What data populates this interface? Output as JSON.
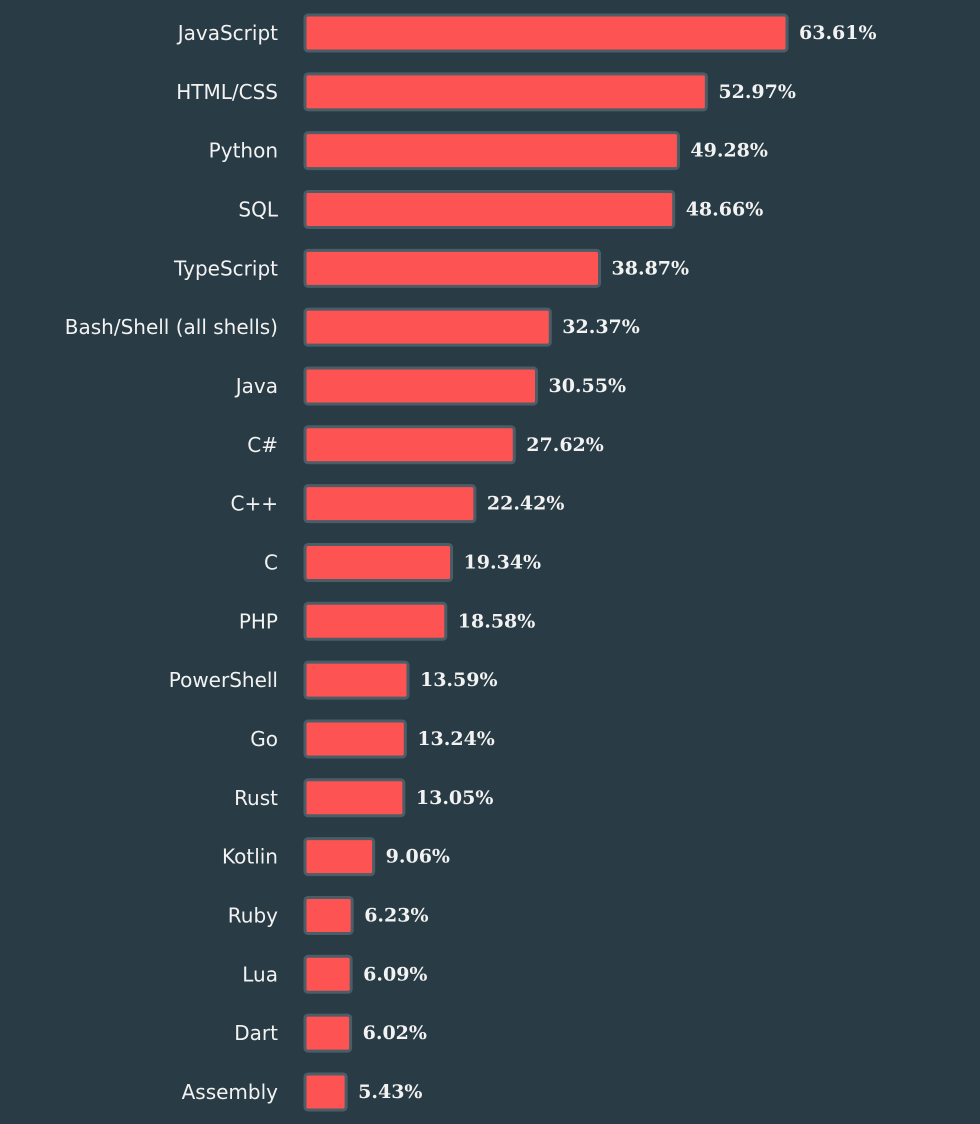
{
  "colors": {
    "background": "#293b44",
    "bar_fill": "#fe5353",
    "bar_stroke": "#4b5d66",
    "text": "#f2f2f2"
  },
  "chart_data": {
    "type": "bar",
    "orientation": "horizontal",
    "categories": [
      "JavaScript",
      "HTML/CSS",
      "Python",
      "SQL",
      "TypeScript",
      "Bash/Shell (all shells)",
      "Java",
      "C#",
      "C++",
      "C",
      "PHP",
      "PowerShell",
      "Go",
      "Rust",
      "Kotlin",
      "Ruby",
      "Lua",
      "Dart",
      "Assembly"
    ],
    "values": [
      63.61,
      52.97,
      49.28,
      48.66,
      38.87,
      32.37,
      30.55,
      27.62,
      22.42,
      19.34,
      18.58,
      13.59,
      13.24,
      13.05,
      9.06,
      6.23,
      6.09,
      6.02,
      5.43
    ],
    "value_labels": [
      "63.61%",
      "52.97%",
      "49.28%",
      "48.66%",
      "38.87%",
      "32.37%",
      "30.55%",
      "27.62%",
      "22.42%",
      "19.34%",
      "18.58%",
      "13.59%",
      "13.24%",
      "13.05%",
      "9.06%",
      "6.23%",
      "6.09%",
      "6.02%",
      "5.43%"
    ],
    "title": "",
    "xlabel": "",
    "ylabel": "",
    "xlim": [
      0,
      63.61
    ],
    "grid": false,
    "legend": "none"
  }
}
